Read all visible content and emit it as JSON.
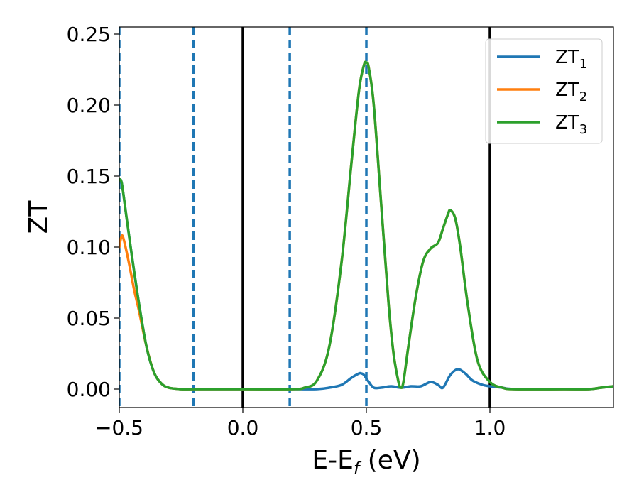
{
  "chart_data": {
    "type": "line",
    "xlabel": "E-E",
    "xlabel_sub": "f",
    "xlabel_unit": " (eV)",
    "ylabel": "ZT",
    "xlim": [
      -0.5,
      1.5
    ],
    "ylim": [
      -0.013,
      0.255
    ],
    "xticks": [
      -0.5,
      0.0,
      0.5,
      1.0
    ],
    "xtick_labels": [
      "−0.5",
      "0.0",
      "0.5",
      "1.0"
    ],
    "yticks": [
      0.0,
      0.05,
      0.1,
      0.15,
      0.2,
      0.25
    ],
    "ytick_labels": [
      "0.00",
      "0.05",
      "0.10",
      "0.15",
      "0.20",
      "0.25"
    ],
    "grid": false,
    "legend_position": "top-right",
    "solid_vlines": [
      0.0,
      1.0
    ],
    "dashed_vlines": [
      -0.5,
      -0.2,
      0.19,
      0.5
    ],
    "colors": {
      "ZT1": "#1f77b4",
      "ZT2": "#ff7f0e",
      "ZT3": "#2ca02c",
      "solid_vline": "#000000",
      "dashed_vline": "#1f77b4"
    },
    "series": [
      {
        "name": "ZT",
        "sub": "1",
        "color": "#1f77b4",
        "x": [
          -0.5,
          -0.49,
          -0.47,
          -0.45,
          -0.42,
          -0.39,
          -0.36,
          -0.33,
          -0.3,
          -0.25,
          -0.2,
          0.0,
          0.2,
          0.3,
          0.35,
          0.4,
          0.44,
          0.47,
          0.48,
          0.49,
          0.51,
          0.53,
          0.56,
          0.6,
          0.64,
          0.68,
          0.72,
          0.76,
          0.79,
          0.81,
          0.84,
          0.87,
          0.9,
          0.93,
          0.97,
          1.0,
          1.05,
          1.1,
          1.3,
          1.4,
          1.45,
          1.5
        ],
        "y": [
          0.147,
          0.145,
          0.12,
          0.095,
          0.06,
          0.03,
          0.012,
          0.004,
          0.001,
          0.0,
          0.0,
          0.0,
          0.0,
          0.0,
          0.001,
          0.003,
          0.008,
          0.011,
          0.011,
          0.01,
          0.005,
          0.001,
          0.001,
          0.002,
          0.001,
          0.002,
          0.002,
          0.005,
          0.003,
          0.001,
          0.01,
          0.014,
          0.011,
          0.006,
          0.003,
          0.002,
          0.001,
          0.0,
          0.0,
          0.0,
          0.001,
          0.002
        ]
      },
      {
        "name": "ZT",
        "sub": "2",
        "color": "#ff7f0e",
        "x": [
          -0.5,
          -0.49,
          -0.48,
          -0.46,
          -0.44,
          -0.42,
          -0.39,
          -0.36,
          -0.33,
          -0.3,
          -0.25,
          -0.2,
          0.0,
          0.2,
          0.25,
          0.3,
          0.35,
          0.4,
          0.44,
          0.47,
          0.49,
          0.5,
          0.51,
          0.53,
          0.56,
          0.59,
          0.61,
          0.63,
          0.64,
          0.65,
          0.67,
          0.7,
          0.73,
          0.76,
          0.79,
          0.81,
          0.83,
          0.84,
          0.86,
          0.88,
          0.91,
          0.95,
          1.0,
          1.05,
          1.1,
          1.3,
          1.4,
          1.45,
          1.5
        ],
        "y": [
          0.1,
          0.108,
          0.104,
          0.088,
          0.07,
          0.055,
          0.03,
          0.012,
          0.004,
          0.001,
          0.0,
          0.0,
          0.0,
          0.0,
          0.001,
          0.006,
          0.03,
          0.09,
          0.16,
          0.21,
          0.228,
          0.23,
          0.226,
          0.2,
          0.13,
          0.06,
          0.025,
          0.005,
          0.001,
          0.005,
          0.03,
          0.065,
          0.09,
          0.099,
          0.103,
          0.113,
          0.123,
          0.126,
          0.12,
          0.1,
          0.06,
          0.02,
          0.005,
          0.001,
          0.0,
          0.0,
          0.0,
          0.001,
          0.002
        ]
      },
      {
        "name": "ZT",
        "sub": "3",
        "color": "#2ca02c",
        "x": [
          -0.5,
          -0.49,
          -0.47,
          -0.45,
          -0.42,
          -0.39,
          -0.36,
          -0.33,
          -0.3,
          -0.25,
          -0.2,
          0.0,
          0.2,
          0.25,
          0.3,
          0.35,
          0.4,
          0.44,
          0.47,
          0.49,
          0.5,
          0.51,
          0.53,
          0.56,
          0.59,
          0.61,
          0.63,
          0.64,
          0.65,
          0.67,
          0.7,
          0.73,
          0.76,
          0.79,
          0.81,
          0.83,
          0.84,
          0.86,
          0.88,
          0.91,
          0.95,
          1.0,
          1.05,
          1.1,
          1.3,
          1.4,
          1.45,
          1.5
        ],
        "y": [
          0.147,
          0.145,
          0.12,
          0.095,
          0.06,
          0.03,
          0.012,
          0.004,
          0.001,
          0.0,
          0.0,
          0.0,
          0.0,
          0.001,
          0.006,
          0.03,
          0.09,
          0.16,
          0.21,
          0.228,
          0.23,
          0.226,
          0.2,
          0.13,
          0.06,
          0.025,
          0.005,
          0.001,
          0.005,
          0.03,
          0.065,
          0.09,
          0.099,
          0.103,
          0.113,
          0.123,
          0.126,
          0.12,
          0.1,
          0.06,
          0.02,
          0.005,
          0.001,
          0.0,
          0.0,
          0.0,
          0.001,
          0.002
        ]
      }
    ]
  }
}
